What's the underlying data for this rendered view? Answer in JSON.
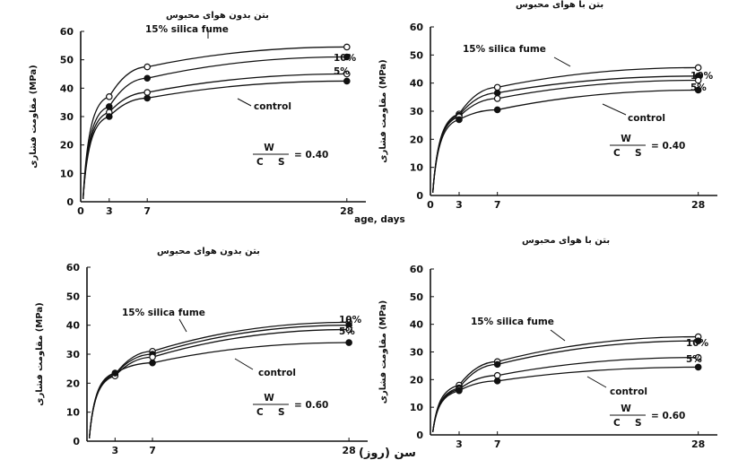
{
  "shared": {
    "ylabel": "مقاومت فشاری (MPa)",
    "xlabel_en": "age, days",
    "xlabel_fa": "سن (روز)"
  },
  "chart_data": [
    {
      "type": "line",
      "title": "بتن بدون هوای محبوس",
      "ratio_value": "= 0.40",
      "x_ticks": [
        0,
        3,
        7,
        28
      ],
      "y_ticks": [
        0,
        10,
        20,
        30,
        40,
        50,
        60
      ],
      "xlim": [
        0,
        30
      ],
      "ylim": [
        0,
        60
      ],
      "series": [
        {
          "name": "15% silica fume",
          "marker": "open",
          "x": [
            3,
            7,
            28
          ],
          "y": [
            37,
            47.5,
            54.5
          ]
        },
        {
          "name": "10%",
          "marker": "filled",
          "x": [
            3,
            7,
            28
          ],
          "y": [
            33.5,
            43.5,
            51
          ]
        },
        {
          "name": "5%",
          "marker": "open",
          "x": [
            3,
            7,
            28
          ],
          "y": [
            31.5,
            38.5,
            45
          ]
        },
        {
          "name": "control",
          "marker": "filled",
          "x": [
            3,
            7,
            28
          ],
          "y": [
            30,
            36.5,
            42.5
          ]
        }
      ]
    },
    {
      "type": "line",
      "title": "بتن با هوای محبوس",
      "ratio_value": "= 0.40",
      "x_ticks": [
        0,
        3,
        7,
        28
      ],
      "y_ticks": [
        0,
        10,
        20,
        30,
        40,
        50,
        60
      ],
      "xlim": [
        0,
        30
      ],
      "ylim": [
        0,
        60
      ],
      "series": [
        {
          "name": "15% silica fume",
          "marker": "open",
          "x": [
            3,
            7,
            28
          ],
          "y": [
            29,
            38.5,
            45.5
          ]
        },
        {
          "name": "10%",
          "marker": "filled",
          "x": [
            3,
            7,
            28
          ],
          "y": [
            28.5,
            36.5,
            42.5
          ]
        },
        {
          "name": "5%",
          "marker": "open",
          "x": [
            3,
            7,
            28
          ],
          "y": [
            28,
            34.5,
            41
          ]
        },
        {
          "name": "control",
          "marker": "filled",
          "x": [
            3,
            7,
            28
          ],
          "y": [
            27,
            30.5,
            37.5
          ]
        }
      ]
    },
    {
      "type": "line",
      "title": "بتن بدون هوای محبوس",
      "ratio_value": "= 0.60",
      "x_ticks": [
        3,
        7,
        28
      ],
      "y_ticks": [
        0,
        10,
        20,
        30,
        40,
        50,
        60
      ],
      "xlim": [
        0,
        30
      ],
      "ylim": [
        0,
        60
      ],
      "series": [
        {
          "name": "15% silica fume",
          "marker": "open",
          "x": [
            3,
            7,
            28
          ],
          "y": [
            23,
            31,
            41
          ]
        },
        {
          "name": "10%",
          "marker": "filled",
          "x": [
            3,
            7,
            28
          ],
          "y": [
            23,
            30,
            40
          ]
        },
        {
          "name": "5%",
          "marker": "open",
          "x": [
            3,
            7,
            28
          ],
          "y": [
            22.5,
            29,
            38.5
          ]
        },
        {
          "name": "control",
          "marker": "filled",
          "x": [
            3,
            7,
            28
          ],
          "y": [
            23.5,
            27,
            34
          ]
        }
      ]
    },
    {
      "type": "line",
      "title": "بتن با هوای محبوس",
      "ratio_value": "= 0.60",
      "x_ticks": [
        3,
        7,
        28
      ],
      "y_ticks": [
        0,
        10,
        20,
        30,
        40,
        50,
        60
      ],
      "xlim": [
        0,
        30
      ],
      "ylim": [
        0,
        60
      ],
      "series": [
        {
          "name": "15% silica fume",
          "marker": "open",
          "x": [
            3,
            7,
            28
          ],
          "y": [
            18,
            26.5,
            35.5
          ]
        },
        {
          "name": "10%",
          "marker": "filled",
          "x": [
            3,
            7,
            28
          ],
          "y": [
            17,
            25.5,
            34
          ]
        },
        {
          "name": "5%",
          "marker": "open",
          "x": [
            3,
            7,
            28
          ],
          "y": [
            16.5,
            21.5,
            28
          ]
        },
        {
          "name": "control",
          "marker": "filled",
          "x": [
            3,
            7,
            28
          ],
          "y": [
            16,
            19.5,
            24.5
          ]
        }
      ]
    }
  ]
}
